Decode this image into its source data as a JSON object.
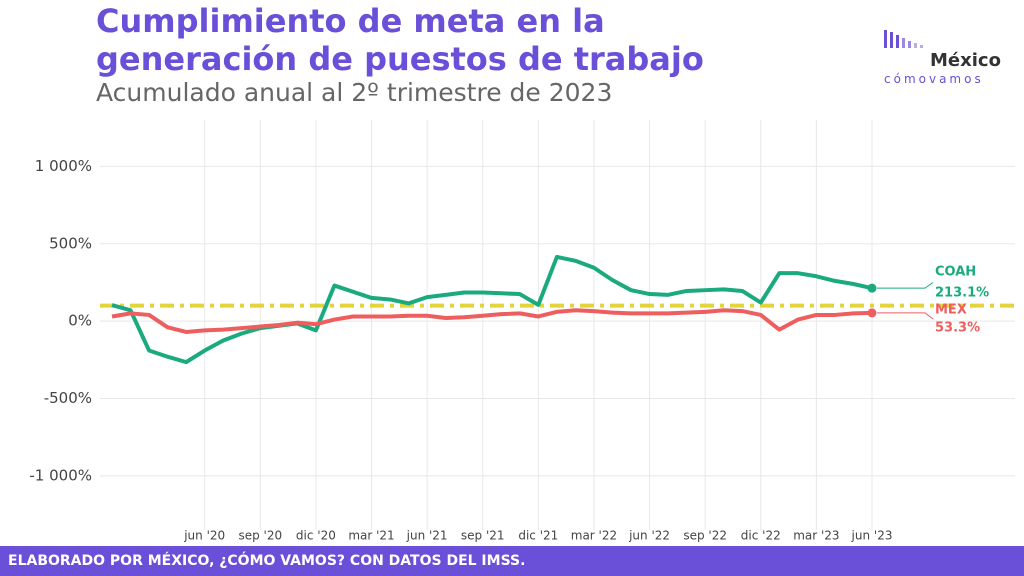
{
  "chart_data": {
    "type": "line",
    "title": "Cumplimiento de meta en la generación de puestos de trabajo",
    "subtitle": "Acumulado anual al 2º trimestre de 2023",
    "x": [
      "2020-01",
      "2020-02",
      "2020-03",
      "2020-04",
      "2020-05",
      "2020-06",
      "2020-07",
      "2020-08",
      "2020-09",
      "2020-10",
      "2020-11",
      "2020-12",
      "2021-01",
      "2021-02",
      "2021-03",
      "2021-04",
      "2021-05",
      "2021-06",
      "2021-07",
      "2021-08",
      "2021-09",
      "2021-10",
      "2021-11",
      "2021-12",
      "2022-01",
      "2022-02",
      "2022-03",
      "2022-04",
      "2022-05",
      "2022-06",
      "2022-07",
      "2022-08",
      "2022-09",
      "2022-10",
      "2022-11",
      "2022-12",
      "2023-01",
      "2023-02",
      "2023-03",
      "2023-04",
      "2023-05",
      "2023-06"
    ],
    "series": [
      {
        "name": "COAH",
        "color": "#1aaa7e",
        "values": [
          104,
          70,
          -190,
          -230,
          -265,
          -190,
          -125,
          -80,
          -45,
          -30,
          -15,
          -60,
          230,
          190,
          150,
          140,
          115,
          155,
          170,
          185,
          185,
          180,
          175,
          105,
          415,
          390,
          345,
          265,
          200,
          175,
          170,
          195,
          200,
          205,
          195,
          120,
          310,
          310,
          290,
          260,
          240,
          213.1
        ],
        "value_labels": [
          null,
          null,
          null,
          null,
          null,
          null,
          null,
          null,
          null,
          null,
          null,
          null,
          null,
          null,
          null,
          null,
          null,
          null,
          null,
          null,
          null,
          null,
          null,
          null,
          null,
          null,
          null,
          null,
          null,
          null,
          null,
          null,
          null,
          null,
          null,
          null,
          null,
          null,
          null,
          null,
          null,
          "213.1%"
        ]
      },
      {
        "name": "MEX",
        "color": "#ee5e5e",
        "values": [
          30,
          50,
          40,
          -40,
          -70,
          -60,
          -55,
          -45,
          -35,
          -25,
          -10,
          -20,
          10,
          30,
          30,
          30,
          35,
          35,
          20,
          25,
          35,
          45,
          50,
          30,
          60,
          70,
          65,
          55,
          50,
          50,
          50,
          55,
          60,
          70,
          65,
          40,
          -55,
          10,
          40,
          40,
          50,
          53.3
        ],
        "value_labels": [
          null,
          null,
          null,
          null,
          null,
          null,
          null,
          null,
          null,
          null,
          null,
          null,
          null,
          null,
          null,
          null,
          null,
          null,
          null,
          null,
          null,
          null,
          null,
          null,
          null,
          null,
          null,
          null,
          null,
          null,
          null,
          null,
          null,
          null,
          null,
          null,
          null,
          null,
          null,
          null,
          null,
          "53.3%"
        ]
      }
    ],
    "reference_line": {
      "value": 100,
      "color": "#e2d43a"
    },
    "ylim": [
      -1350,
      1300
    ],
    "yticks": [
      {
        "value": 1000,
        "label": "1 000%"
      },
      {
        "value": 500,
        "label": "500%"
      },
      {
        "value": 0,
        "label": "0%"
      },
      {
        "value": -500,
        "label": "-500%"
      },
      {
        "value": -1000,
        "label": "-1 000%"
      }
    ],
    "xticks": [
      {
        "value": "2020-06",
        "label": "jun '20"
      },
      {
        "value": "2020-09",
        "label": "sep '20"
      },
      {
        "value": "2020-12",
        "label": "dic '20"
      },
      {
        "value": "2021-03",
        "label": "mar '21"
      },
      {
        "value": "2021-06",
        "label": "jun '21"
      },
      {
        "value": "2021-09",
        "label": "sep '21"
      },
      {
        "value": "2021-12",
        "label": "dic '21"
      },
      {
        "value": "2022-03",
        "label": "mar '22"
      },
      {
        "value": "2022-06",
        "label": "jun '22"
      },
      {
        "value": "2022-09",
        "label": "sep '22"
      },
      {
        "value": "2022-12",
        "label": "dic '22"
      },
      {
        "value": "2023-03",
        "label": "mar '23"
      },
      {
        "value": "2023-06",
        "label": "jun '23"
      }
    ],
    "grid": true
  },
  "logo": {
    "line1": "México",
    "line2": "cómovamos"
  },
  "footer": "ELABORADO POR MÉXICO, ¿CÓMO VAMOS? CON DATOS DEL IMSS."
}
